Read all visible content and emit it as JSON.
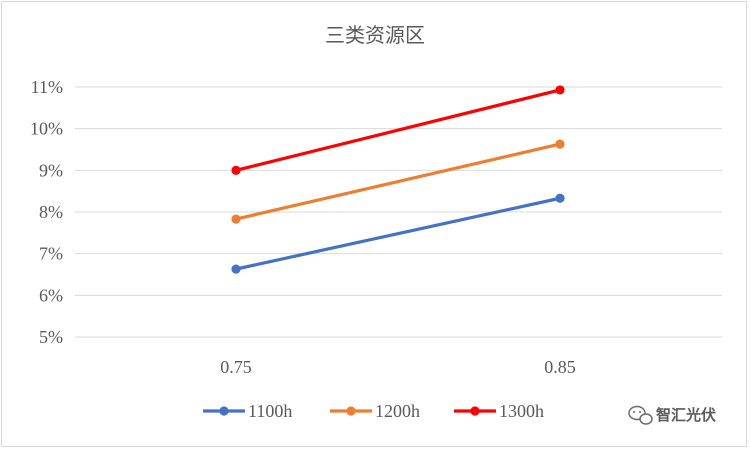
{
  "chart_data": {
    "type": "line",
    "title": "三类资源区",
    "x": [
      "0.75",
      "0.85"
    ],
    "ylim": [
      0.05,
      0.11
    ],
    "yticks": [
      "5%",
      "6%",
      "7%",
      "8%",
      "9%",
      "10%",
      "11%"
    ],
    "grid": true,
    "legend_position": "bottom",
    "series": [
      {
        "name": "1100h",
        "color": "#4472c4",
        "values": [
          0.0663,
          0.0833
        ]
      },
      {
        "name": "1200h",
        "color": "#ed7d31",
        "values": [
          0.0783,
          0.0963
        ]
      },
      {
        "name": "1300h",
        "color": "#ff0000",
        "values": [
          0.09,
          0.1093
        ]
      }
    ]
  },
  "watermark": {
    "text": "智汇光伏",
    "icon": "wechat-icon"
  }
}
